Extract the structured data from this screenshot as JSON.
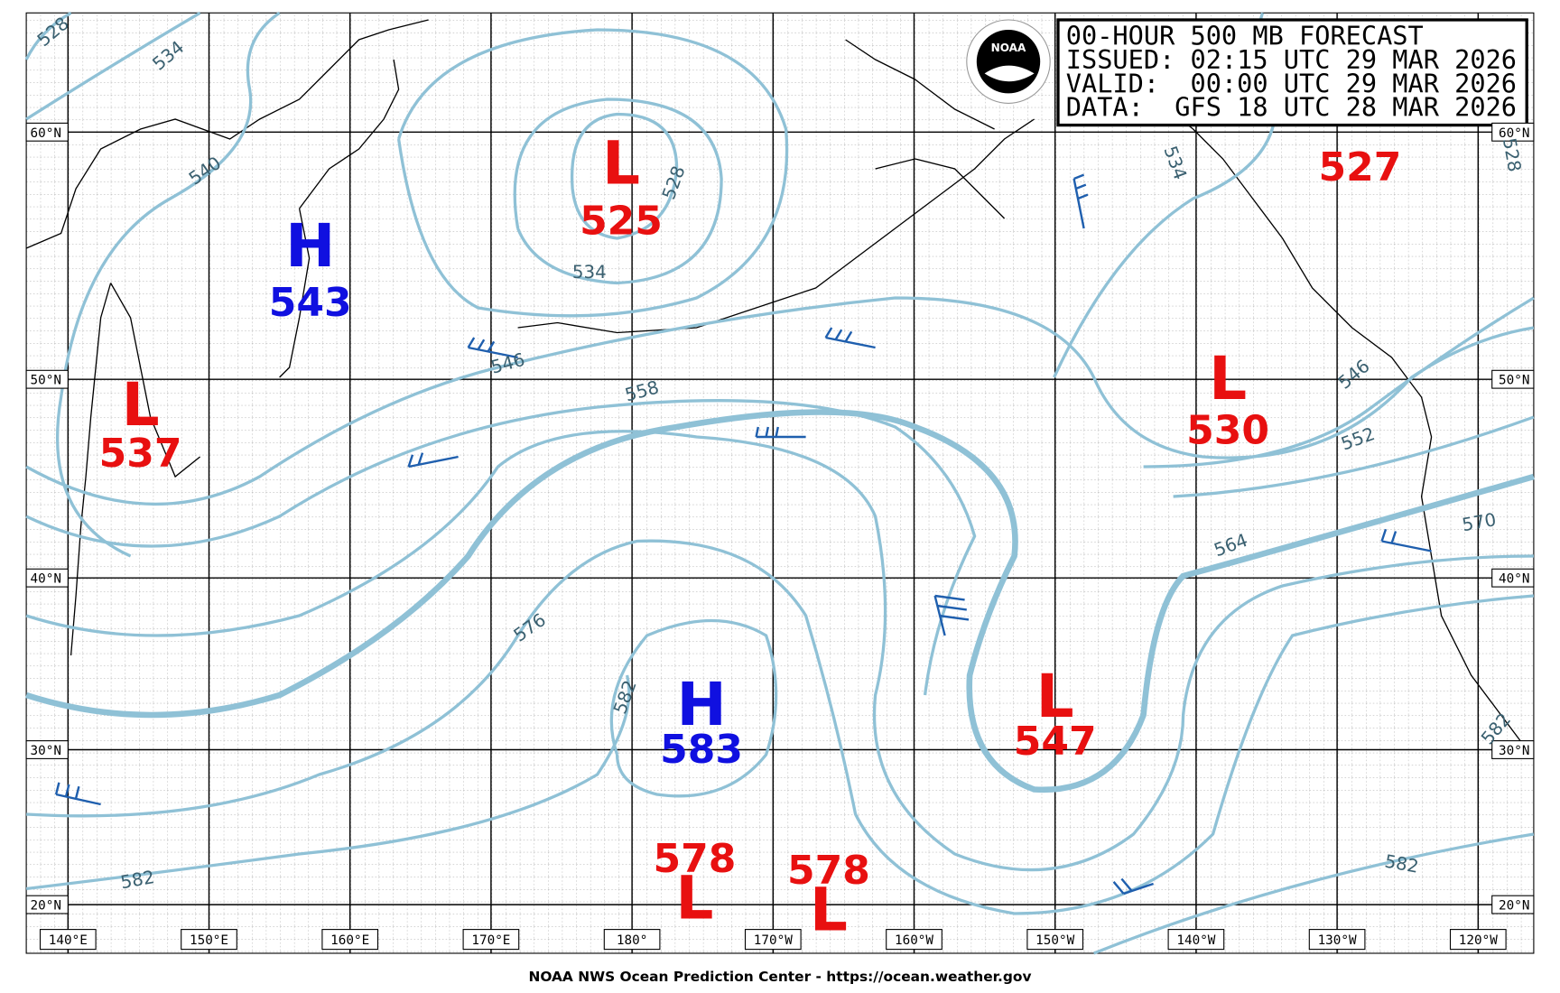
{
  "header": {
    "lines": [
      "00-HOUR 500 MB FORECAST",
      "ISSUED: 02:15 UTC 29 MAR 2026",
      "VALID:  00:00 UTC 29 MAR 2026",
      "DATA:  GFS 18 UTC 28 MAR 2026"
    ],
    "logo": "NOAA"
  },
  "longitude_labels": [
    "140°E",
    "150°E",
    "160°E",
    "170°E",
    "180°",
    "170°W",
    "160°W",
    "150°W",
    "140°W",
    "130°W",
    "120°W"
  ],
  "latitude_labels": [
    "60°N",
    "50°N",
    "40°N",
    "30°N",
    "20°N"
  ],
  "centers": [
    {
      "type": "L",
      "value": 525
    },
    {
      "type": "H",
      "value": 543
    },
    {
      "type": "L",
      "value": 537
    },
    {
      "type": "L",
      "value": 530
    },
    {
      "value": 527
    },
    {
      "type": "H",
      "value": 583
    },
    {
      "type": "L",
      "value": 547
    },
    {
      "type": "L",
      "value": 578
    },
    {
      "type": "L",
      "value": 578
    }
  ],
  "contour_labels": [
    528,
    534,
    540,
    528,
    534,
    546,
    558,
    534,
    546,
    552,
    564,
    570,
    576,
    582,
    582,
    582,
    582,
    528
  ],
  "footer": "NOAA NWS Ocean Prediction Center - https://ocean.weather.gov"
}
